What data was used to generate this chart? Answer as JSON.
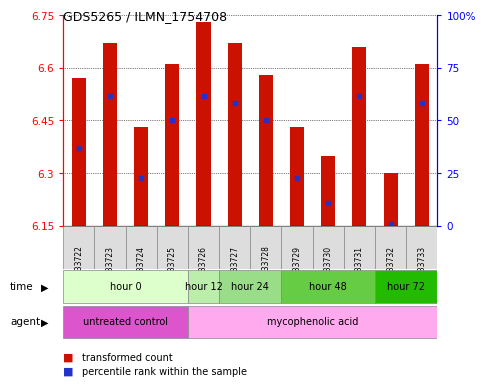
{
  "title": "GDS5265 / ILMN_1754708",
  "samples": [
    "GSM1133722",
    "GSM1133723",
    "GSM1133724",
    "GSM1133725",
    "GSM1133726",
    "GSM1133727",
    "GSM1133728",
    "GSM1133729",
    "GSM1133730",
    "GSM1133731",
    "GSM1133732",
    "GSM1133733"
  ],
  "bar_tops": [
    6.57,
    6.67,
    6.43,
    6.61,
    6.73,
    6.67,
    6.58,
    6.43,
    6.35,
    6.66,
    6.3,
    6.61
  ],
  "bar_bottoms": [
    6.15,
    6.15,
    6.15,
    6.15,
    6.15,
    6.15,
    6.15,
    6.15,
    6.15,
    6.15,
    6.15,
    6.15
  ],
  "blue_dot_values": [
    6.37,
    6.52,
    6.285,
    6.45,
    6.52,
    6.5,
    6.45,
    6.285,
    6.215,
    6.52,
    6.155,
    6.5
  ],
  "ylim": [
    6.15,
    6.75
  ],
  "y_ticks": [
    6.15,
    6.3,
    6.45,
    6.6,
    6.75
  ],
  "y_tick_labels": [
    "6.15",
    "6.3",
    "6.45",
    "6.6",
    "6.75"
  ],
  "right_y_ticks": [
    0,
    25,
    50,
    75,
    100
  ],
  "right_y_tick_labels": [
    "0",
    "25",
    "50",
    "75",
    "100%"
  ],
  "bar_color": "#CC1100",
  "dot_color": "#2233CC",
  "time_groups": [
    {
      "label": "hour 0",
      "indices": [
        0,
        1,
        2,
        3
      ],
      "color": "#DDFFCC"
    },
    {
      "label": "hour 12",
      "indices": [
        4
      ],
      "color": "#BBEEAA"
    },
    {
      "label": "hour 24",
      "indices": [
        5,
        6
      ],
      "color": "#99DD88"
    },
    {
      "label": "hour 48",
      "indices": [
        7,
        8,
        9
      ],
      "color": "#66CC44"
    },
    {
      "label": "hour 72",
      "indices": [
        10,
        11
      ],
      "color": "#22BB00"
    }
  ],
  "agent_groups": [
    {
      "label": "untreated control",
      "indices": [
        0,
        1,
        2,
        3
      ],
      "color": "#DD55CC"
    },
    {
      "label": "mycophenolic acid",
      "indices": [
        4,
        5,
        6,
        7,
        8,
        9,
        10,
        11
      ],
      "color": "#FFAAEE"
    }
  ],
  "legend_tc_color": "#CC1100",
  "legend_pr_color": "#2233CC"
}
